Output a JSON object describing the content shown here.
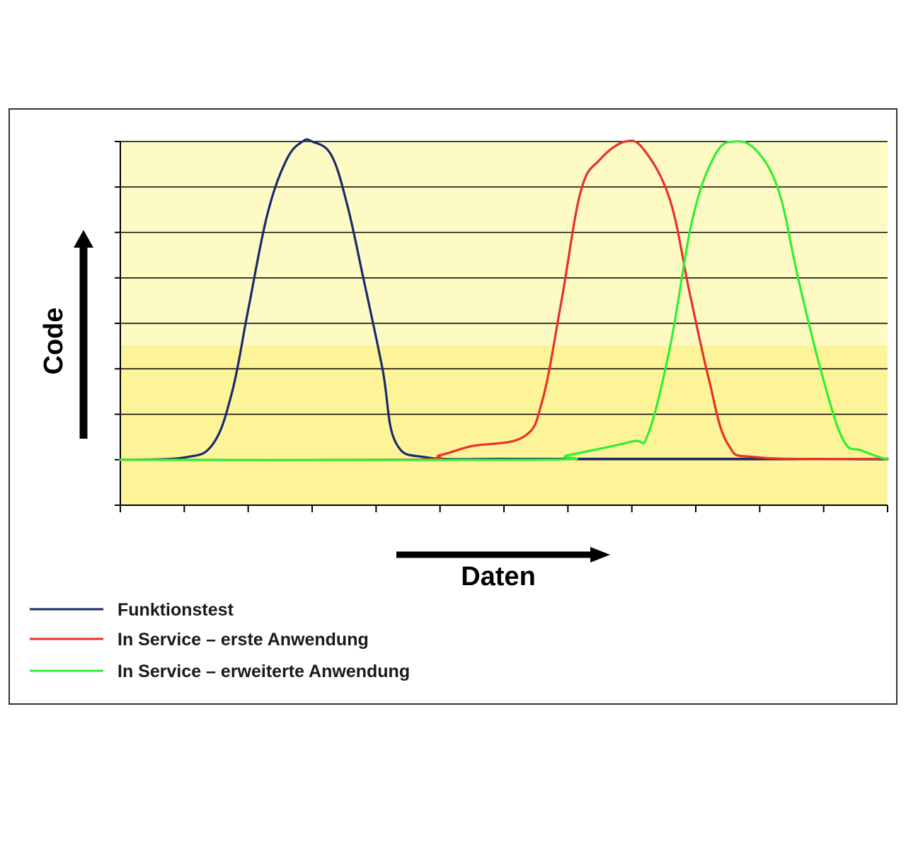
{
  "chart_data": {
    "type": "line",
    "xlabel": "Daten",
    "ylabel": "Code",
    "xlim": [
      0,
      12
    ],
    "ylim": [
      -1,
      7
    ],
    "x_ticks": [
      0,
      1,
      2,
      3,
      4,
      5,
      6,
      7,
      8,
      9,
      10,
      11,
      12
    ],
    "y_ticks": [
      -1,
      0,
      1,
      2,
      3,
      4,
      5,
      6,
      7
    ],
    "grid": true,
    "legend_position": "bottom-left",
    "background": {
      "upper": "#fefac4",
      "lower": "#fdf49a"
    },
    "series": [
      {
        "name": "Funktionstest",
        "color": "#1a2a6c",
        "x": [
          0,
          1.0,
          1.45,
          1.75,
          2.0,
          2.3,
          2.6,
          2.85,
          3.0,
          3.3,
          3.55,
          3.8,
          4.1,
          4.3,
          4.8,
          6.0,
          7.0,
          9.0,
          10.0,
          12.0
        ],
        "y": [
          0,
          0.05,
          0.35,
          1.5,
          3.3,
          5.4,
          6.6,
          7.0,
          7.0,
          6.7,
          5.6,
          4.0,
          2.0,
          0.4,
          0.05,
          0.02,
          0.02,
          0.02,
          0.02,
          0.01
        ]
      },
      {
        "name": "In Service – erste Anwendung",
        "color": "#e8312a",
        "x": [
          0,
          4.5,
          5.0,
          5.5,
          6.3,
          6.6,
          6.9,
          7.2,
          7.5,
          7.9,
          8.2,
          8.6,
          8.9,
          9.2,
          9.5,
          10.0,
          12.0
        ],
        "y": [
          0,
          0.0,
          0.1,
          0.3,
          0.5,
          1.3,
          3.5,
          5.9,
          6.6,
          7.0,
          6.8,
          5.7,
          3.7,
          1.8,
          0.35,
          0.05,
          0.02
        ]
      },
      {
        "name": "In Service – erweiterte Anwendung",
        "color": "#33ee33",
        "x": [
          0,
          6.5,
          7.0,
          8.0,
          8.25,
          8.6,
          8.95,
          9.3,
          9.6,
          9.95,
          10.3,
          10.6,
          10.95,
          11.3,
          11.6,
          12.0
        ],
        "y": [
          0,
          0.0,
          0.1,
          0.4,
          0.55,
          2.5,
          5.3,
          6.7,
          7.0,
          6.8,
          5.9,
          4.0,
          2.0,
          0.45,
          0.2,
          0.0
        ]
      }
    ]
  }
}
